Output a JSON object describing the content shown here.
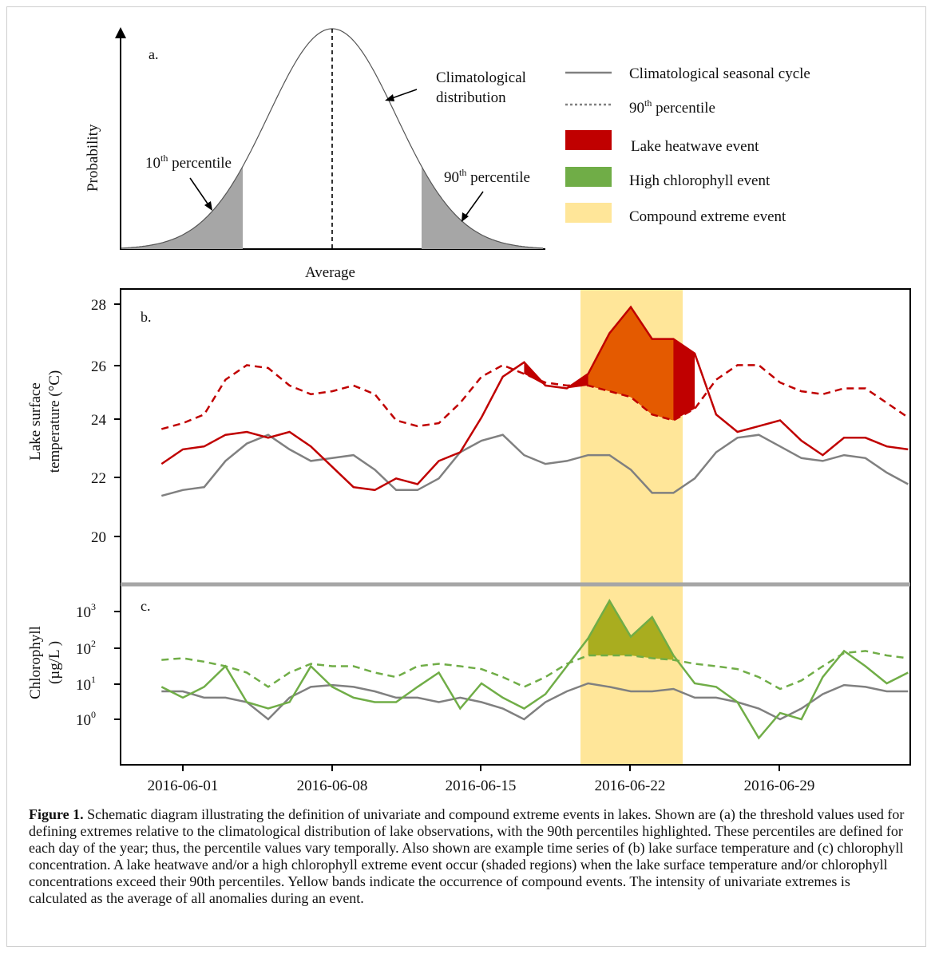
{
  "panel_a": {
    "label": "a.",
    "ylabel": "Probability",
    "xlabel": "Average",
    "dist_label_1": "Climatological",
    "dist_label_2": "distribution",
    "p10_num": "10",
    "p10_sup": "th",
    "p10_word": " percentile",
    "p90_num": "90",
    "p90_sup": "th",
    "p90_word": " percentile"
  },
  "legend": [
    {
      "type": "line",
      "label": "Climatological seasonal cycle",
      "color": "#808080"
    },
    {
      "type": "dotted",
      "label_num": "90",
      "label_sup": "th",
      "label_rest": " percentile",
      "color": "#808080"
    },
    {
      "type": "patch",
      "label": "Lake heatwave event",
      "color": "#c00000"
    },
    {
      "type": "patch",
      "label": "High chlorophyll event",
      "color": "#70ad47"
    },
    {
      "type": "patch",
      "label": "Compound extreme event",
      "color": "#ffe699"
    }
  ],
  "panel_b": {
    "label": "b.",
    "ylabel_1": "Lake surface",
    "ylabel_2": "temperature (°C)",
    "yticks": [
      "20",
      "22",
      "24",
      "26",
      "28"
    ]
  },
  "panel_c": {
    "label": "c.",
    "ylabel_1": "Chlorophyll",
    "ylabel_2": "(µg/L )",
    "yticks": [
      {
        "base": "10",
        "exp": "0"
      },
      {
        "base": "10",
        "exp": "1"
      },
      {
        "base": "10",
        "exp": "2"
      },
      {
        "base": "10",
        "exp": "3"
      }
    ]
  },
  "xticks": [
    "2016-06-01",
    "2016-06-08",
    "2016-06-15",
    "2016-06-22",
    "2016-06-29"
  ],
  "caption": {
    "label": "Figure 1.",
    "text": " Schematic diagram illustrating the definition of univariate and compound extreme events in lakes. Shown are (a) the threshold values used for defining extremes relative to the climatological distribution of lake observations, with the 90th percentiles highlighted. These percentiles are defined for each day of the year; thus, the percentile values vary temporally. Also shown are example time series of (b) lake surface temperature and (c) chlorophyll concentration. A lake heatwave and/or a high chlorophyll extreme event occur (shaded regions) when the lake surface temperature and/or chlorophyll concentrations exceed their 90th percentiles. Yellow bands indicate the occurrence of compound events. The intensity of univariate extremes is calculated as the average of all anomalies during an event."
  },
  "chart_data": [
    {
      "type": "area",
      "panel": "a",
      "description_kind": "normal distribution",
      "shaded_tails": [
        "10th percentile",
        "90th percentile"
      ]
    },
    {
      "type": "line",
      "panel": "b",
      "xlabel": "",
      "ylabel": "Lake surface temperature (°C)",
      "ylim": [
        19.2,
        28.2
      ],
      "x": [
        "2016-05-31",
        "2016-06-01",
        "2016-06-02",
        "2016-06-03",
        "2016-06-04",
        "2016-06-05",
        "2016-06-06",
        "2016-06-07",
        "2016-06-08",
        "2016-06-09",
        "2016-06-10",
        "2016-06-11",
        "2016-06-12",
        "2016-06-13",
        "2016-06-14",
        "2016-06-15",
        "2016-06-16",
        "2016-06-17",
        "2016-06-18",
        "2016-06-19",
        "2016-06-20",
        "2016-06-21",
        "2016-06-22",
        "2016-06-23",
        "2016-06-24",
        "2016-06-25",
        "2016-06-26",
        "2016-06-27",
        "2016-06-28",
        "2016-06-29",
        "2016-06-30",
        "2016-07-01",
        "2016-07-02",
        "2016-07-03",
        "2016-07-04",
        "2016-07-05"
      ],
      "series": [
        {
          "name": "Climatological seasonal cycle",
          "values": [
            21.4,
            21.6,
            21.7,
            22.6,
            23.2,
            23.5,
            23.0,
            22.6,
            22.7,
            22.8,
            22.3,
            21.6,
            21.6,
            22.0,
            22.9,
            23.3,
            23.5,
            22.8,
            22.5,
            22.6,
            22.8,
            22.8,
            22.3,
            21.5,
            21.5,
            22.0,
            22.9,
            23.4,
            23.5,
            23.1,
            22.7,
            22.6,
            22.8,
            22.7,
            22.2,
            21.8
          ]
        },
        {
          "name": "90th percentile",
          "values": [
            23.7,
            23.9,
            24.2,
            25.4,
            25.9,
            25.8,
            25.2,
            24.9,
            25.0,
            25.2,
            24.9,
            24.0,
            23.8,
            23.9,
            24.6,
            25.5,
            25.9,
            25.6,
            25.3,
            25.2,
            25.2,
            25.0,
            24.8,
            24.2,
            24.0,
            24.4,
            25.4,
            25.9,
            25.9,
            25.3,
            25.0,
            24.9,
            25.1,
            25.1,
            24.6,
            24.1
          ]
        },
        {
          "name": "Lake surface temperature",
          "values": [
            22.5,
            23.0,
            23.1,
            23.5,
            23.6,
            23.4,
            23.6,
            23.1,
            22.4,
            21.7,
            21.6,
            22.0,
            21.8,
            22.6,
            22.9,
            24.1,
            25.5,
            26.0,
            25.2,
            25.1,
            25.6,
            27.0,
            27.9,
            26.8,
            26.8,
            26.3,
            24.2,
            23.6,
            23.8,
            24.0,
            23.3,
            22.8,
            23.4,
            23.4,
            23.1,
            23.0
          ]
        }
      ],
      "events": [
        {
          "kind": "Lake heatwave event",
          "start": "2016-06-17",
          "end": "2016-06-25"
        },
        {
          "kind": "Compound extreme event",
          "start": "2016-06-20",
          "end": "2016-06-24"
        }
      ]
    },
    {
      "type": "line",
      "panel": "c",
      "xlabel": "",
      "ylabel": "Chlorophyll (µg/L )",
      "yscale": "log",
      "ylim": [
        0.1,
        3000
      ],
      "x": [
        "2016-05-31",
        "2016-06-01",
        "2016-06-02",
        "2016-06-03",
        "2016-06-04",
        "2016-06-05",
        "2016-06-06",
        "2016-06-07",
        "2016-06-08",
        "2016-06-09",
        "2016-06-10",
        "2016-06-11",
        "2016-06-12",
        "2016-06-13",
        "2016-06-14",
        "2016-06-15",
        "2016-06-16",
        "2016-06-17",
        "2016-06-18",
        "2016-06-19",
        "2016-06-20",
        "2016-06-21",
        "2016-06-22",
        "2016-06-23",
        "2016-06-24",
        "2016-06-25",
        "2016-06-26",
        "2016-06-27",
        "2016-06-28",
        "2016-06-29",
        "2016-06-30",
        "2016-07-01",
        "2016-07-02",
        "2016-07-03",
        "2016-07-04",
        "2016-07-05"
      ],
      "series": [
        {
          "name": "Climatological seasonal cycle",
          "values": [
            6,
            6,
            4,
            4,
            3,
            1,
            4,
            8,
            9,
            8,
            6,
            4,
            4,
            3,
            4,
            3,
            2,
            1,
            3,
            6,
            10,
            8,
            6,
            6,
            7,
            4,
            4,
            3,
            2,
            1,
            2,
            5,
            9,
            8,
            6,
            6
          ]
        },
        {
          "name": "90th percentile",
          "values": [
            45,
            50,
            40,
            30,
            20,
            8,
            20,
            35,
            30,
            30,
            20,
            15,
            30,
            35,
            30,
            25,
            15,
            8,
            15,
            35,
            60,
            60,
            60,
            50,
            45,
            35,
            30,
            25,
            15,
            7,
            12,
            30,
            70,
            80,
            60,
            50
          ]
        },
        {
          "name": "Chlorophyll",
          "values": [
            8,
            4,
            8,
            30,
            3,
            2,
            3,
            30,
            8,
            4,
            3,
            3,
            8,
            20,
            2,
            10,
            4,
            2,
            5,
            30,
            180,
            2000,
            200,
            700,
            60,
            10,
            8,
            3,
            0.3,
            1.5,
            1,
            15,
            80,
            30,
            10,
            20
          ]
        }
      ],
      "events": [
        {
          "kind": "High chlorophyll event",
          "start": "2016-06-20",
          "end": "2016-06-24"
        },
        {
          "kind": "Compound extreme event",
          "start": "2016-06-20",
          "end": "2016-06-24"
        }
      ]
    }
  ]
}
